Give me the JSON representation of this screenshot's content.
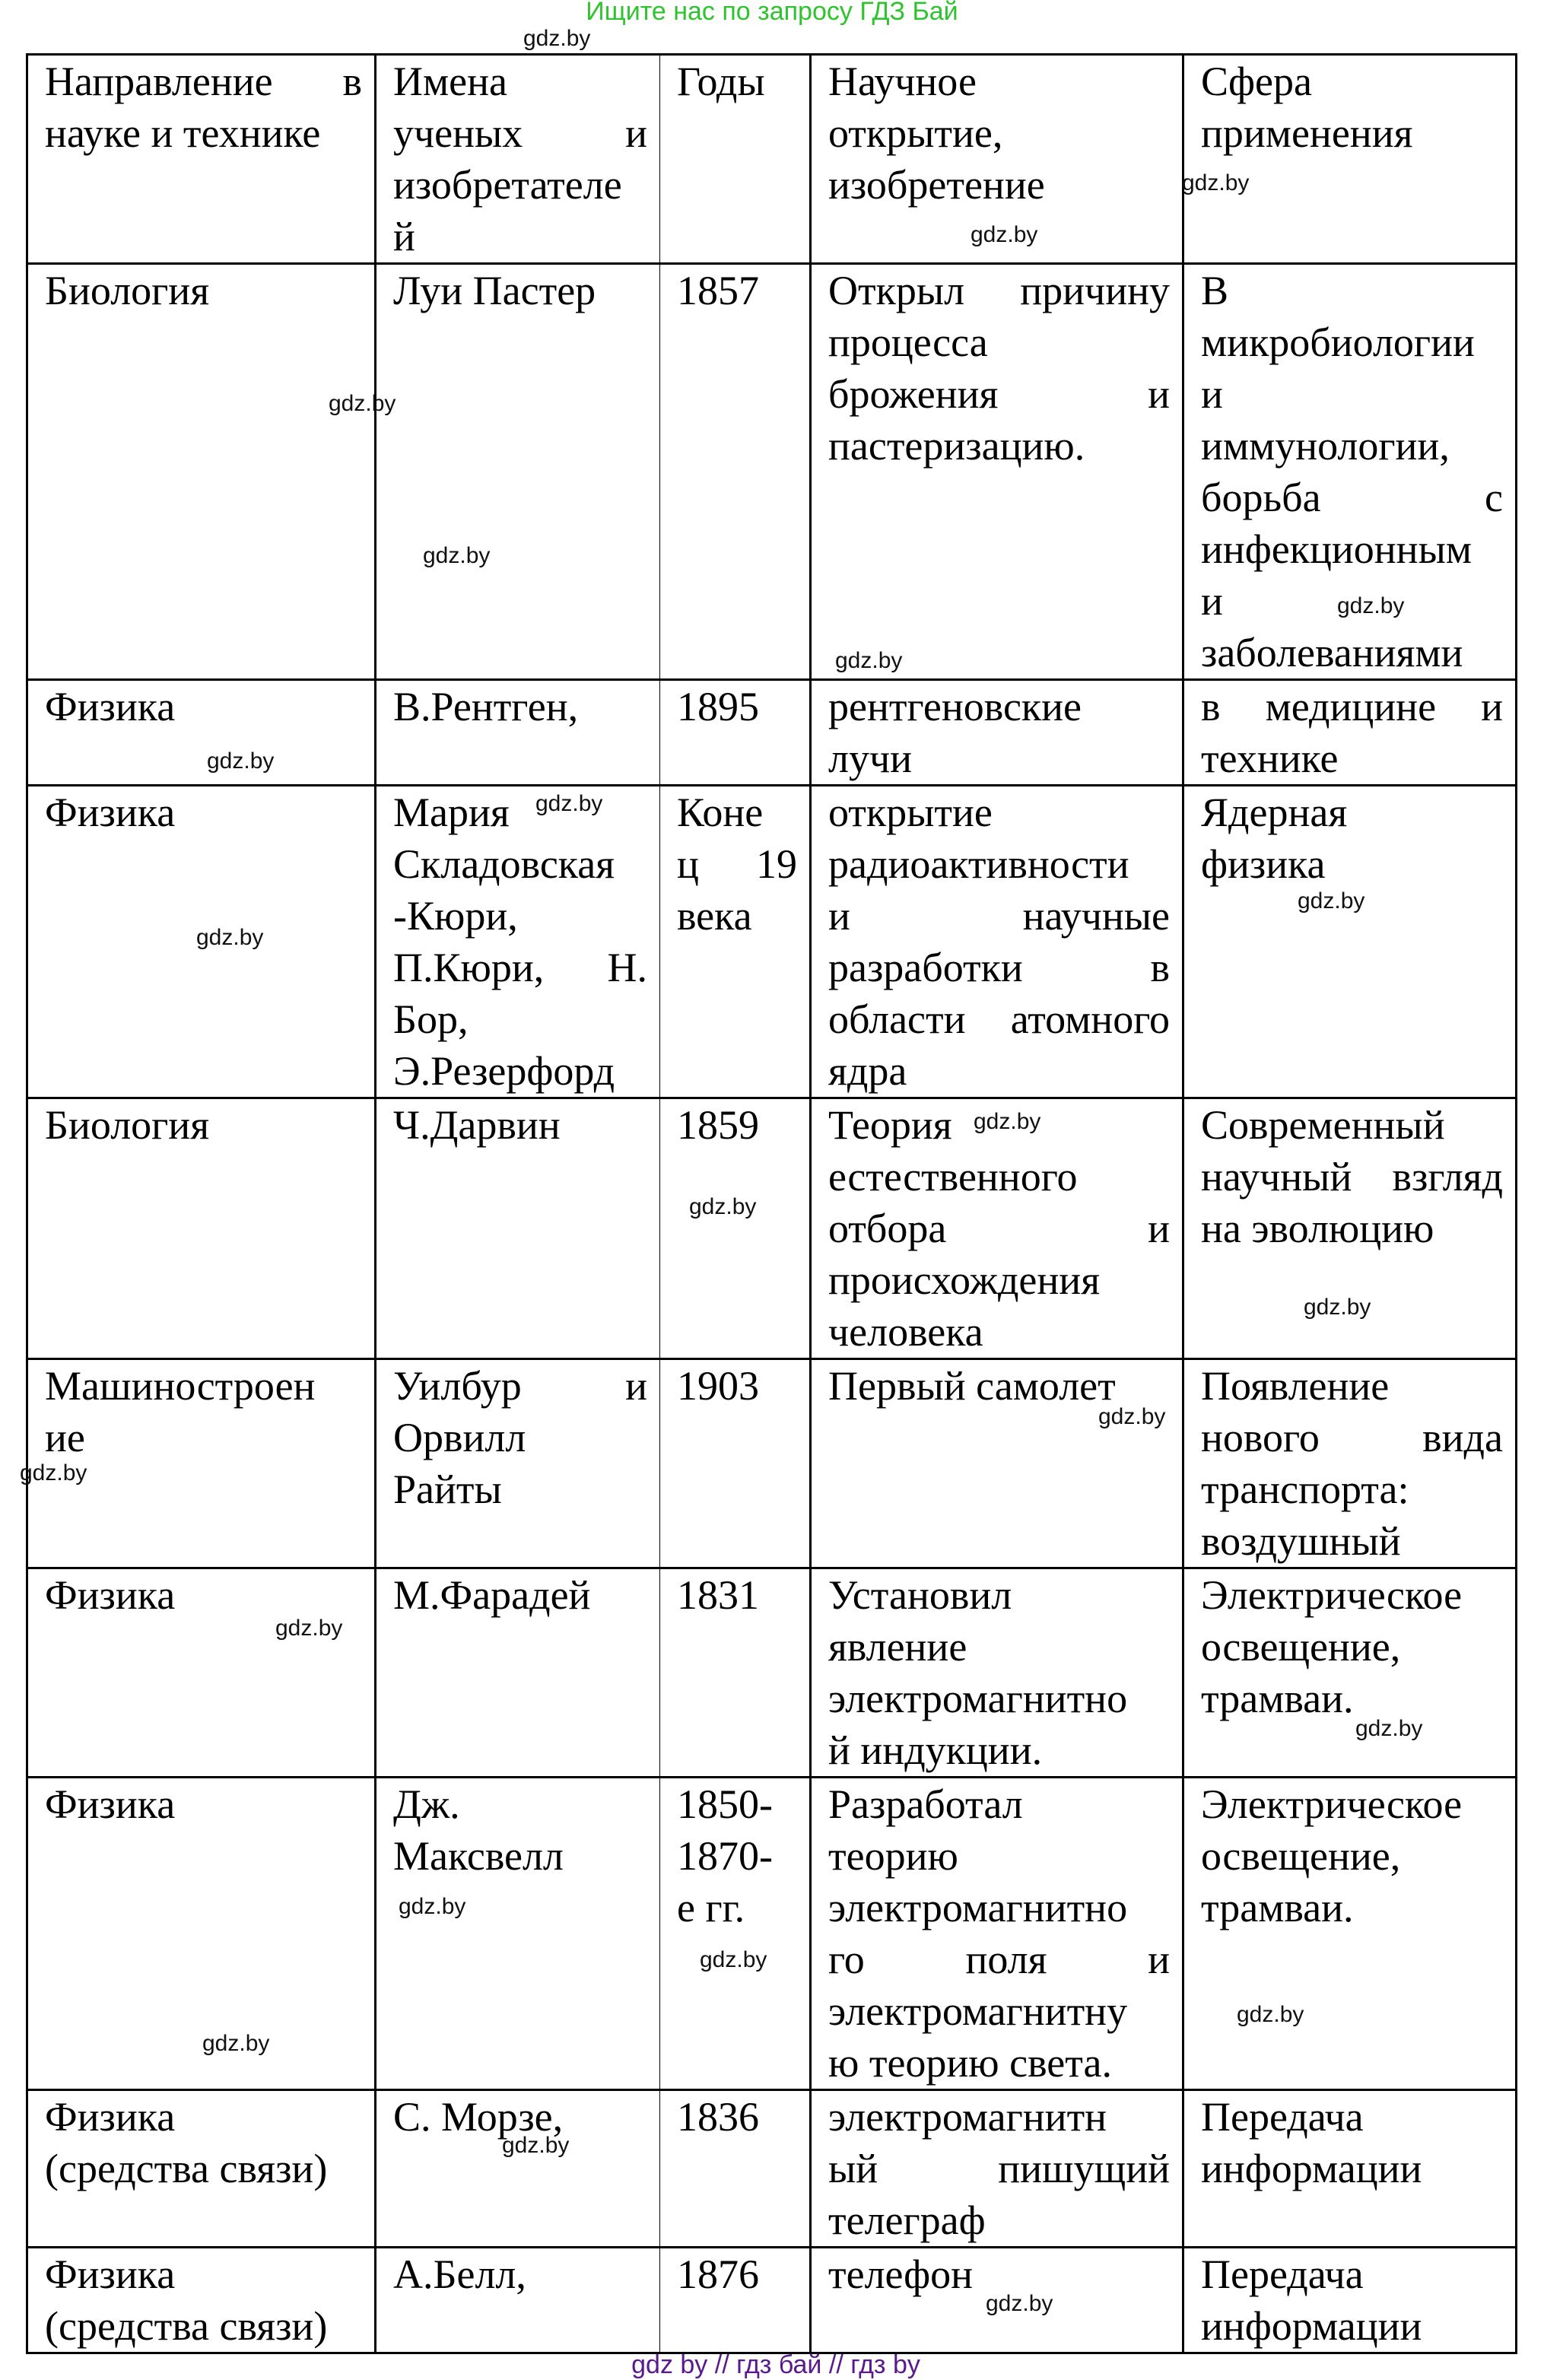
{
  "top_note": "Ищите нас по запросу ГДЗ Бай",
  "footer": "gdz by  //  гдз бай  //  гдз by",
  "watermark": "gdz.by",
  "table": {
    "header": [
      [
        "Направление в",
        "науке и технике"
      ],
      [
        "Имена",
        "ученых и",
        "изобретателе",
        "й"
      ],
      [
        "Годы"
      ],
      [
        "Научное",
        "открытие,",
        "изобретение"
      ],
      [
        "Сфера",
        "применения"
      ]
    ],
    "rows": [
      [
        [
          "Биология"
        ],
        [
          "Луи Пастер"
        ],
        [
          "1857"
        ],
        [
          "Открыл причину",
          "процесса",
          "брожения и",
          "пастеризацию."
        ],
        [
          "В",
          "микробиологии",
          "и",
          "иммунологии,",
          "борьба с",
          "инфекционным",
          "и",
          "заболеваниями"
        ]
      ],
      [
        [
          "Физика"
        ],
        [
          "В.Рентген,"
        ],
        [
          "1895"
        ],
        [
          "рентгеновские",
          "лучи"
        ],
        [
          "в медицине и",
          "технике"
        ]
      ],
      [
        [
          "Физика"
        ],
        [
          "Мария",
          "Складовская",
          "-Кюри,",
          "П.Кюри, Н.",
          "Бор,",
          "Э.Резерфорд"
        ],
        [
          "Коне",
          "ц 19",
          "века"
        ],
        [
          "открытие",
          "радиоактивности",
          "и научные",
          "разработки в",
          "области атомного",
          "ядра"
        ],
        [
          "Ядерная",
          "физика"
        ]
      ],
      [
        [
          "Биология"
        ],
        [
          "Ч.Дарвин"
        ],
        [
          "1859"
        ],
        [
          "Теория",
          "естественного",
          "отбора и",
          "происхождения",
          "человека"
        ],
        [
          "Современный",
          "научный взгляд",
          "на эволюцию"
        ]
      ],
      [
        [
          "Машиностроен",
          "ие"
        ],
        [
          "Уилбур и",
          "Орвилл",
          "Райты"
        ],
        [
          "1903"
        ],
        [
          "Первый самолет"
        ],
        [
          "Появление",
          "нового вида",
          "транспорта:",
          "воздушный"
        ]
      ],
      [
        [
          "Физика"
        ],
        [
          "М.Фарадей"
        ],
        [
          "1831"
        ],
        [
          "Установил",
          "явление",
          "электромагнитно",
          "й индукции."
        ],
        [
          "Электрическое",
          "освещение,",
          "трамваи."
        ]
      ],
      [
        [
          "Физика"
        ],
        [
          "Дж.",
          "Максвелл"
        ],
        [
          "1850-",
          "1870-",
          "е гг."
        ],
        [
          "Разработал",
          "теорию",
          "электромагнитно",
          "го поля и",
          "электромагнитну",
          "ю теорию света."
        ],
        [
          "Электрическое",
          "освещение,",
          "трамваи."
        ]
      ],
      [
        [
          "Физика",
          "(средства связи)"
        ],
        [
          "С. Морзе,"
        ],
        [
          "1836"
        ],
        [
          "электромагнитн",
          "ый пишущий",
          "телеграф"
        ],
        [
          "Передача",
          "информации"
        ]
      ],
      [
        [
          "Физика",
          "(средства связи)"
        ],
        [
          "А.Белл,"
        ],
        [
          "1876"
        ],
        [
          "телефон"
        ],
        [
          "Передача",
          "информации"
        ]
      ]
    ]
  }
}
